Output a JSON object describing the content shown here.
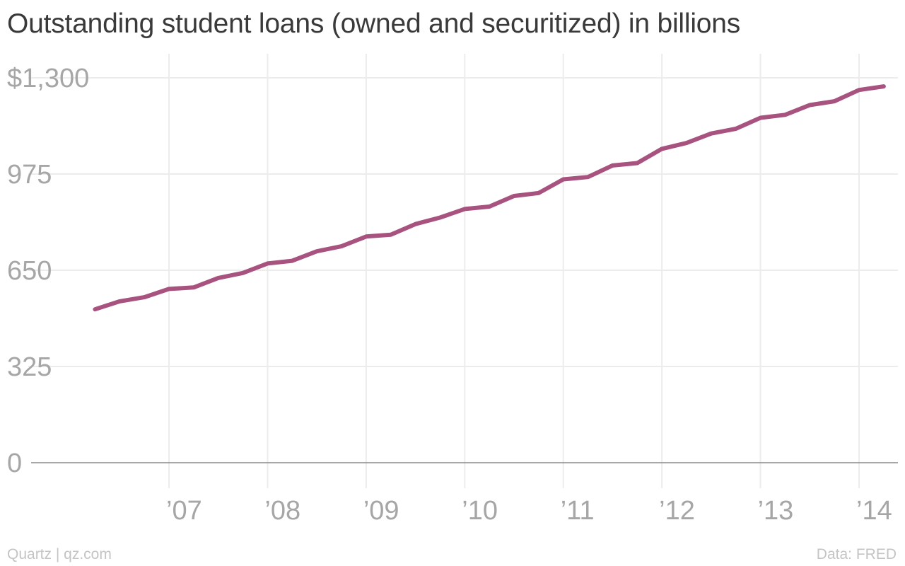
{
  "chart_data": {
    "type": "line",
    "title": "Outstanding student loans (owned and securitized) in billions",
    "xlabel": "",
    "ylabel": "",
    "ylim": [
      0,
      1300
    ],
    "xlim": [
      2006.3,
      2014.3
    ],
    "y_ticks": [
      {
        "value": 0,
        "label": "0"
      },
      {
        "value": 325,
        "label": "325"
      },
      {
        "value": 650,
        "label": "650"
      },
      {
        "value": 975,
        "label": "975"
      },
      {
        "value": 1300,
        "label": "$1,300"
      }
    ],
    "x_ticks": [
      {
        "value": 2007,
        "label": "’07"
      },
      {
        "value": 2008,
        "label": "’08"
      },
      {
        "value": 2009,
        "label": "’09"
      },
      {
        "value": 2010,
        "label": "’10"
      },
      {
        "value": 2011,
        "label": "’11"
      },
      {
        "value": 2012,
        "label": "’12"
      },
      {
        "value": 2013,
        "label": "’13"
      },
      {
        "value": 2014,
        "label": "’14"
      }
    ],
    "grid": true,
    "series": [
      {
        "color": "#a8527f",
        "x": [
          2006.25,
          2006.5,
          2006.75,
          2007.0,
          2007.25,
          2007.5,
          2007.75,
          2008.0,
          2008.25,
          2008.5,
          2008.75,
          2009.0,
          2009.25,
          2009.5,
          2009.75,
          2010.0,
          2010.25,
          2010.5,
          2010.75,
          2011.0,
          2011.25,
          2011.5,
          2011.75,
          2012.0,
          2012.25,
          2012.5,
          2012.75,
          2013.0,
          2013.25,
          2013.5,
          2013.75,
          2014.0,
          2014.25
        ],
        "values": [
          518,
          545,
          559,
          587,
          592,
          624,
          641,
          673,
          682,
          714,
          731,
          764,
          770,
          806,
          828,
          857,
          865,
          901,
          911,
          957,
          965,
          1004,
          1012,
          1060,
          1080,
          1112,
          1128,
          1165,
          1175,
          1208,
          1221,
          1259,
          1271
        ]
      }
    ]
  },
  "footer": {
    "credit": "Quartz | qz.com",
    "source": "Data: FRED"
  }
}
